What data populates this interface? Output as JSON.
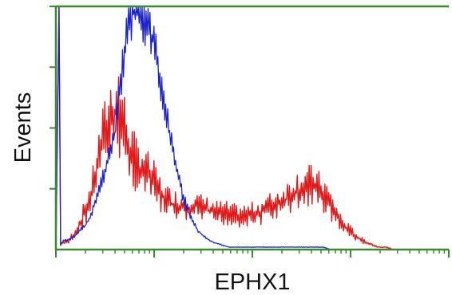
{
  "chart_data": {
    "type": "line",
    "title": "",
    "xlabel": "EPHX1",
    "ylabel": "Events",
    "xlim": [
      0,
      1000
    ],
    "ylim": [
      0,
      100
    ],
    "grid": false,
    "legend": "none",
    "colors": {
      "frame": "#3a8a2e",
      "series_red": "#e01a1a",
      "series_blue": "#1a22cc"
    },
    "series": [
      {
        "color": "#e01a1a",
        "x": [
          0,
          8,
          12,
          20,
          30,
          45,
          60,
          75,
          90,
          105,
          120,
          135,
          150,
          160,
          170,
          180,
          190,
          200,
          210,
          220,
          235,
          250,
          265,
          280,
          295,
          310,
          330,
          350,
          370,
          390,
          410,
          430,
          450,
          470,
          490,
          510,
          530,
          550,
          565,
          580,
          595,
          610,
          625,
          640,
          655,
          670,
          685,
          700,
          715,
          730,
          745,
          760,
          775,
          790,
          805,
          820,
          840,
          860,
          880,
          900,
          1000
        ],
        "y": [
          0,
          100,
          2,
          3,
          3,
          6,
          10,
          16,
          22,
          34,
          44,
          52,
          56,
          58,
          52,
          44,
          40,
          36,
          34,
          33,
          30,
          27,
          23,
          20,
          19,
          18,
          17,
          18,
          17,
          16,
          15,
          15,
          14,
          14,
          14,
          15,
          16,
          18,
          19,
          20,
          22,
          24,
          25,
          26,
          26,
          24,
          22,
          18,
          14,
          10,
          8,
          6,
          4,
          3,
          2,
          1,
          1,
          0,
          0,
          0,
          0
        ]
      },
      {
        "color": "#1a22cc",
        "x": [
          0,
          8,
          12,
          20,
          30,
          45,
          60,
          75,
          90,
          105,
          120,
          135,
          150,
          165,
          180,
          195,
          210,
          225,
          240,
          255,
          270,
          285,
          300,
          320,
          340,
          360,
          380,
          400,
          420,
          440,
          460,
          480,
          500,
          520,
          540,
          560,
          580,
          600,
          620,
          640,
          660,
          680,
          700,
          720,
          740,
          760,
          780,
          800,
          1000
        ],
        "y": [
          0,
          100,
          2,
          4,
          4,
          5,
          8,
          10,
          14,
          22,
          30,
          38,
          48,
          68,
          86,
          97,
          100,
          96,
          90,
          80,
          64,
          52,
          40,
          24,
          14,
          8,
          5,
          3,
          2,
          1,
          1,
          1,
          1,
          1,
          1,
          1,
          1,
          1,
          1,
          1,
          1,
          1,
          0,
          0,
          0,
          0,
          0,
          0,
          0
        ]
      }
    ]
  }
}
